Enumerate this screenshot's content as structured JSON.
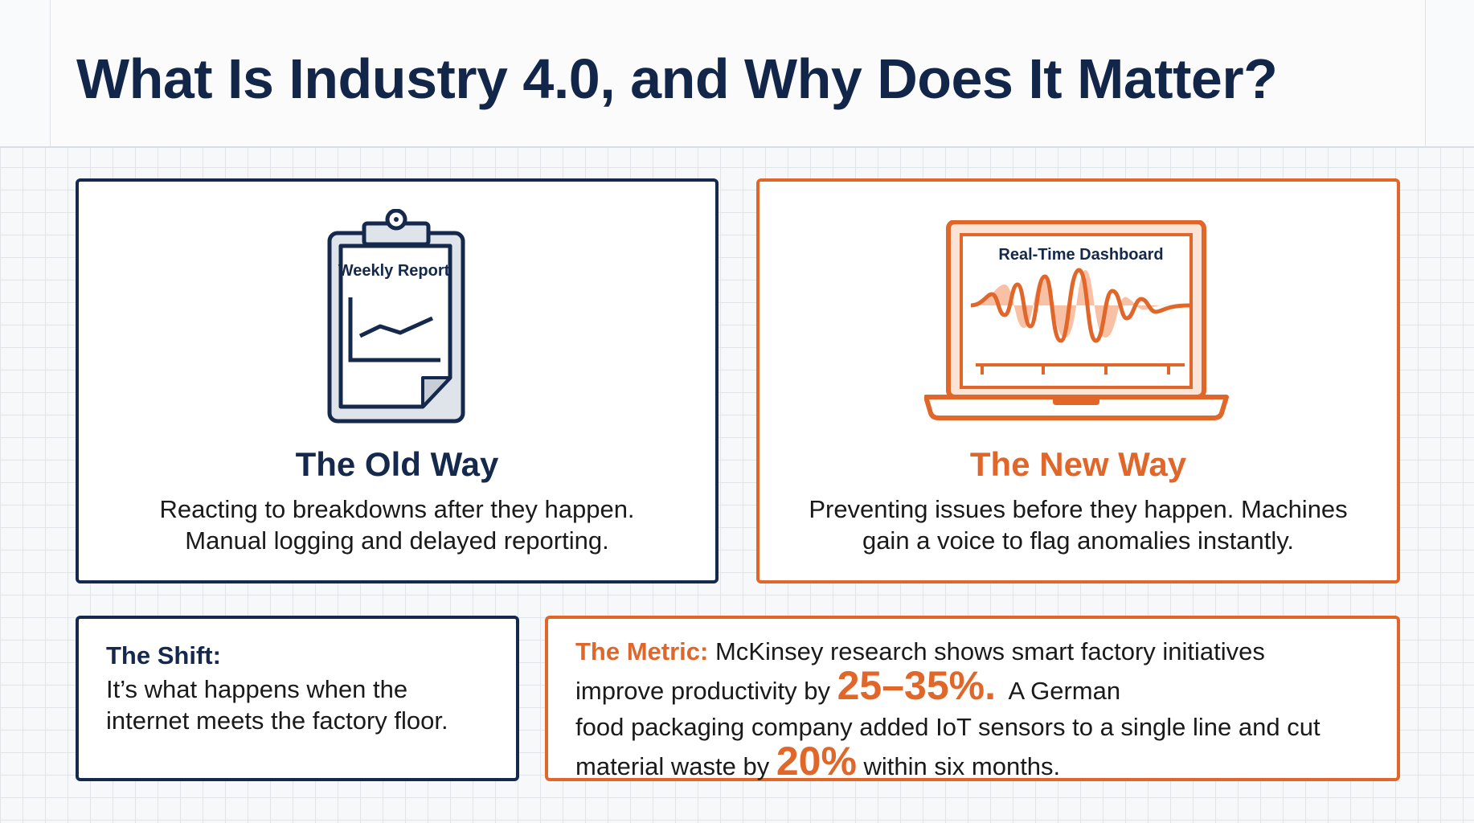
{
  "title": "What Is Industry 4.0, and Why Does It Matter?",
  "old_way": {
    "icon_label": "Weekly Report",
    "title": "The Old Way",
    "body_lines": [
      "Reacting to breakdowns after they happen.",
      "Manual logging and delayed reporting."
    ]
  },
  "new_way": {
    "icon_label": "Real-Time Dashboard",
    "title": "The New Way",
    "body_lines": [
      "Preventing issues before they happen. Machines",
      "gain a voice to flag anomalies instantly."
    ]
  },
  "shift": {
    "label": "The Shift:",
    "lines": [
      "It’s what happens when the",
      "internet meets the factory floor."
    ]
  },
  "metric": {
    "label": "The Metric:",
    "line1": " McKinsey research shows smart factory initiatives",
    "line2_pre": "improve productivity by ",
    "stat1": "25–35%.",
    "line2_post": "  A German",
    "line3": "food packaging company added IoT sensors to a single line and cut",
    "line4_pre": "material waste by ",
    "stat2": "20%",
    "line4_post": " within six months."
  },
  "colors": {
    "navy": "#14294b",
    "orange": "#e0662a"
  },
  "icons": {
    "old_way": "clipboard-icon",
    "new_way": "laptop-icon"
  }
}
